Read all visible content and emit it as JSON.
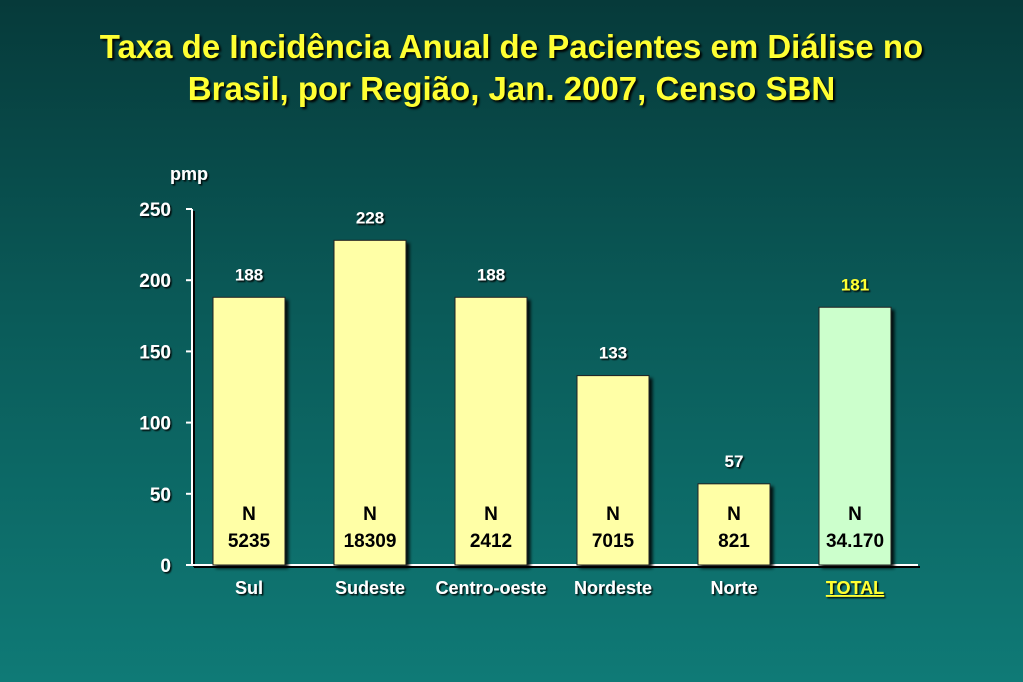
{
  "title_line1": "Taxa de Incidência Anual de Pacientes em Diálise no",
  "title_line2": "Brasil, por Região, Jan. 2007, Censo SBN",
  "colors": {
    "bar": "#ffffa6",
    "bar_total": "#ccffcc",
    "title": "#ffff33",
    "total_label": "#ffff33",
    "total_value": "#ffff33"
  },
  "chart_data": {
    "type": "bar",
    "title": "Taxa de Incidência Anual de Pacientes em Diálise no Brasil, por Região, Jan. 2007, Censo SBN",
    "ylabel": "pmp",
    "xlabel": "",
    "ylim": [
      0,
      250
    ],
    "yticks": [
      "0",
      "50",
      "100",
      "150",
      "200",
      "250"
    ],
    "categories": [
      "Sul",
      "Sudeste",
      "Centro-oeste",
      "Nordeste",
      "Norte",
      "TOTAL"
    ],
    "values": [
      188,
      228,
      188,
      133,
      57,
      181
    ],
    "value_labels": [
      "188",
      "228",
      "188",
      "133",
      "57",
      "181"
    ],
    "n_label": "N",
    "n_values": [
      "5235",
      "18309",
      "2412",
      "7015",
      "821",
      "34.170"
    ],
    "grid": false,
    "legend": "none"
  }
}
